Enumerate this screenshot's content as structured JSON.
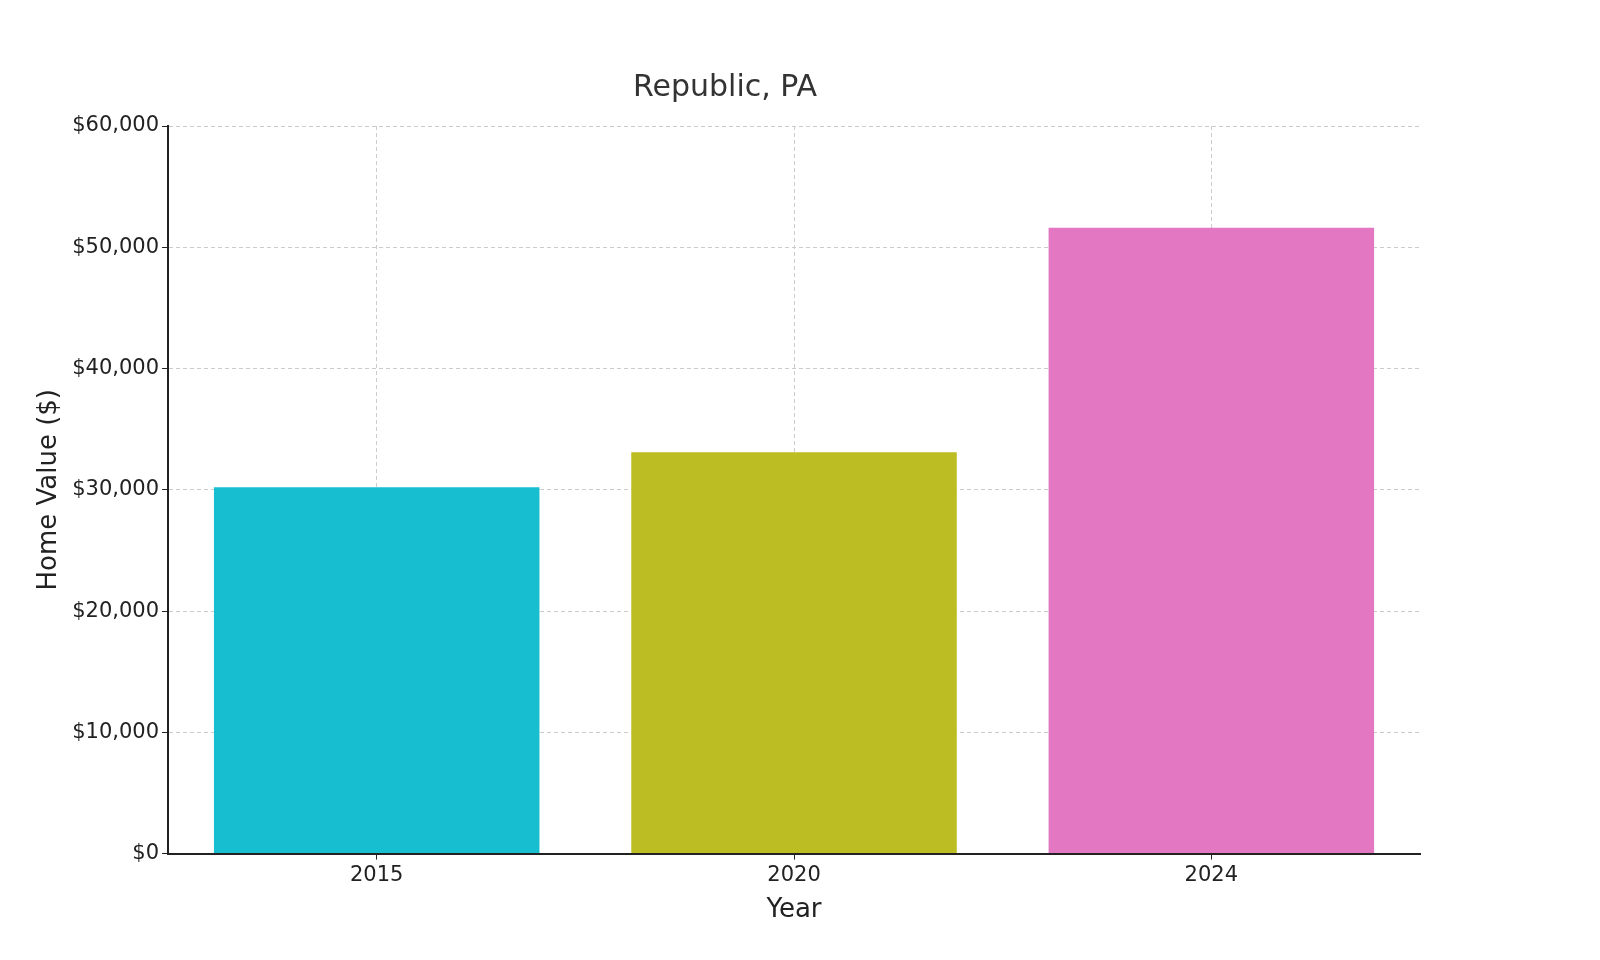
{
  "chart_data": {
    "type": "bar",
    "title": "Republic, PA",
    "x_label": "Year",
    "y_label": "Home Value ($)",
    "categories": [
      "2015",
      "2020",
      "2024"
    ],
    "values": [
      30200,
      33100,
      51600
    ],
    "colors": [
      "#17becf",
      "#bcbd22",
      "#e377c2"
    ],
    "ylim": [
      0,
      60000
    ],
    "yticks": [
      {
        "value": 0,
        "label": "$0"
      },
      {
        "value": 10000,
        "label": "$10,000"
      },
      {
        "value": 20000,
        "label": "$20,000"
      },
      {
        "value": 30000,
        "label": "$30,000"
      },
      {
        "value": 40000,
        "label": "$40,000"
      },
      {
        "value": 50000,
        "label": "$50,000"
      },
      {
        "value": 60000,
        "label": "$60,000"
      }
    ],
    "grid": true
  }
}
